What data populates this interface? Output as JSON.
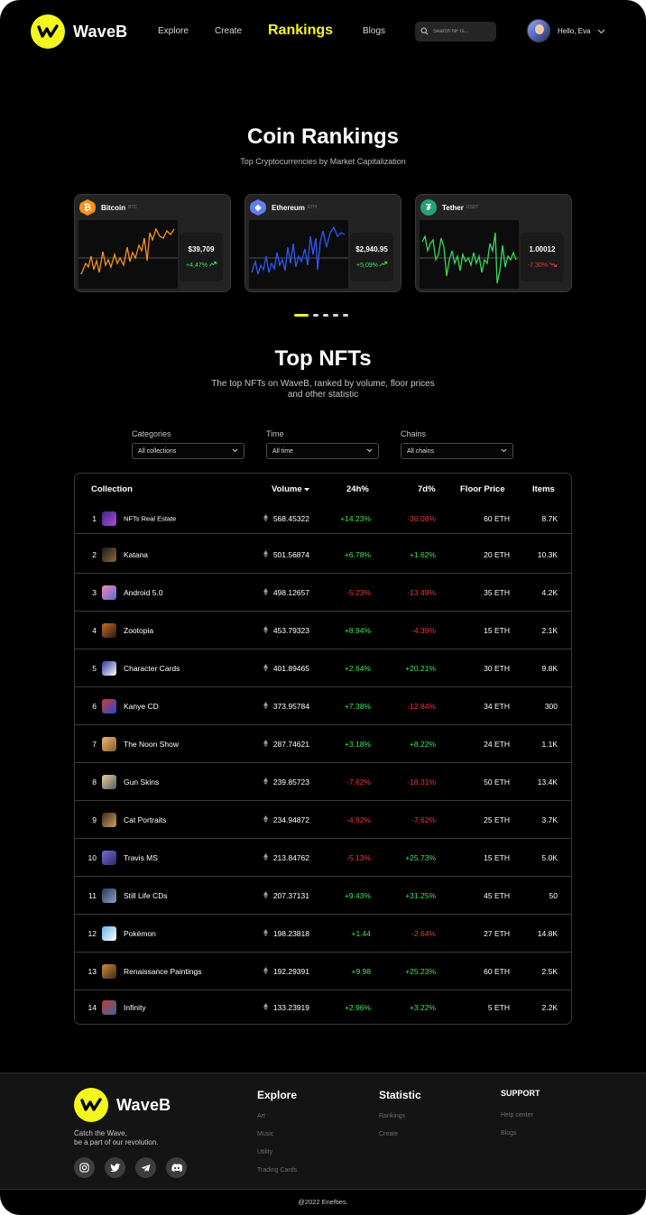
{
  "nav": {
    "brand": "WaveB",
    "links": [
      {
        "label": "Explore",
        "active": false
      },
      {
        "label": "Create",
        "active": false
      },
      {
        "label": "Rankings",
        "active": true
      },
      {
        "label": "Blogs",
        "active": false
      }
    ],
    "search_placeholder": "Search NFTs...",
    "greeting": "Hello, Eva"
  },
  "hero": {
    "title": "Coin Rankings",
    "subtitle": "Top Cryptocurrencies by Market Capitalization"
  },
  "coins": [
    {
      "name": "Bitcoin",
      "symbol": "BTC",
      "price": "$39,709",
      "change": "+4,47%",
      "trend": "up",
      "color": "#f7931a",
      "icon": "bitcoin-icon"
    },
    {
      "name": "Ethereum",
      "symbol": "ETH",
      "price": "$2,940.95",
      "change": "+5,09%",
      "trend": "up",
      "color": "#627eea",
      "icon": "ethereum-icon"
    },
    {
      "name": "Tether",
      "symbol": "USDT",
      "price": "1.00012",
      "change": "-7,30%",
      "trend": "down",
      "color": "#26a17b",
      "icon": "tether-icon"
    }
  ],
  "nfts_section": {
    "title": "Top NFTs",
    "subtitle": "The top NFTs on WaveB, ranked by volume, floor prices and other statistic"
  },
  "filters": [
    {
      "label": "Categories",
      "value": "All collections"
    },
    {
      "label": "Time",
      "value": "All time"
    },
    {
      "label": "Chains",
      "value": "All chains"
    }
  ],
  "table": {
    "headers": {
      "collection": "Collection",
      "volume": "Volume",
      "h24": "24h%",
      "d7": "7d%",
      "floor": "Floor Price",
      "items": "Items"
    },
    "rows": [
      {
        "rank": "1",
        "name": "NFTs Real Estate",
        "volume": "568.45322",
        "h24": "+14.23%",
        "d7": "-36.08%",
        "floor": "60 ETH",
        "items": "8.7K"
      },
      {
        "rank": "2",
        "name": "Katana",
        "volume": "501.56874",
        "h24": "+6.78%",
        "d7": "+1.62%",
        "floor": "20 ETH",
        "items": "10.3K"
      },
      {
        "rank": "3",
        "name": "Android 5.0",
        "volume": "498.12657",
        "h24": "-5.23%",
        "d7": "-13.49%",
        "floor": "35 ETH",
        "items": "4.2K"
      },
      {
        "rank": "4",
        "name": "Zootopia",
        "volume": "453.79323",
        "h24": "+8.94%",
        "d7": "-4.39%",
        "floor": "15 ETH",
        "items": "2.1K"
      },
      {
        "rank": "5",
        "name": "Character Cards",
        "volume": "401.89465",
        "h24": "+2.64%",
        "d7": "+20.21%",
        "floor": "30 ETH",
        "items": "9.8K"
      },
      {
        "rank": "6",
        "name": "Kanye CD",
        "volume": "373.95784",
        "h24": "+7.38%",
        "d7": "-12.84%",
        "floor": "34 ETH",
        "items": "300"
      },
      {
        "rank": "7",
        "name": "The Noon Show",
        "volume": "287.74621",
        "h24": "+3.18%",
        "d7": "+8.22%",
        "floor": "24 ETH",
        "items": "1.1K"
      },
      {
        "rank": "8",
        "name": "Gun Skins",
        "volume": "239.85723",
        "h24": "-7.62%",
        "d7": "-18.31%",
        "floor": "50 ETH",
        "items": "13.4K"
      },
      {
        "rank": "9",
        "name": "Cat Portraits",
        "volume": "234.94872",
        "h24": "-4.92%",
        "d7": "-7.62%",
        "floor": "25 ETH",
        "items": "3.7K"
      },
      {
        "rank": "10",
        "name": "Travis MS",
        "volume": "213.84762",
        "h24": "-5.13%",
        "d7": "+25.73%",
        "floor": "15 ETH",
        "items": "5.0K"
      },
      {
        "rank": "11",
        "name": "Still Life CDs",
        "volume": "207.37131",
        "h24": "+9.43%",
        "d7": "+31.25%",
        "floor": "45 ETH",
        "items": "50"
      },
      {
        "rank": "12",
        "name": "Pokémon",
        "volume": "198.23818",
        "h24": "+1.44",
        "d7": "-2.64%",
        "floor": "27 ETH",
        "items": "14.8K"
      },
      {
        "rank": "13",
        "name": "Renaissance Paintings",
        "volume": "192.29391",
        "h24": "+9.98",
        "d7": "+25.23%",
        "floor": "60 ETH",
        "items": "2.5K"
      },
      {
        "rank": "14",
        "name": "Infinity",
        "volume": "133.23919",
        "h24": "+2.96%",
        "d7": "+3.22%",
        "floor": "5 ETH",
        "items": "2.2K"
      }
    ]
  },
  "footer": {
    "brand": "WaveB",
    "tagline_1": "Catch the Wave,",
    "tagline_2": "be a part of our revolution.",
    "columns": [
      {
        "title": "Explore",
        "links": [
          "Art",
          "Music",
          "Utility",
          "Trading Cards"
        ]
      },
      {
        "title": "Statistic",
        "links": [
          "Rankings",
          "Create"
        ]
      },
      {
        "title": "SUPPORT",
        "links": [
          "Help center",
          "Blogs"
        ]
      }
    ],
    "copyright": "@2022 Enefties."
  },
  "colors": {
    "accent": "#f3f71c",
    "positive": "#41e35b",
    "negative": "#f03636",
    "background": "#000000"
  }
}
